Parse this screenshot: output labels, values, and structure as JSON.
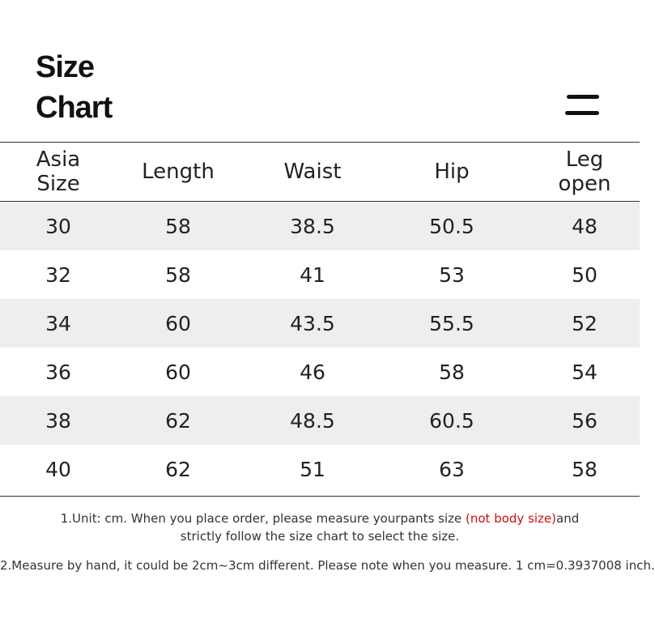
{
  "title": {
    "line1": "Size",
    "line2": "Chart"
  },
  "icons": {
    "menu": "menu-icon"
  },
  "table": {
    "headers": [
      {
        "line1": "Asia",
        "line2": "Size"
      },
      {
        "line1": "Length",
        "line2": ""
      },
      {
        "line1": "Waist",
        "line2": ""
      },
      {
        "line1": "Hip",
        "line2": ""
      },
      {
        "line1": "Leg",
        "line2": "open"
      }
    ],
    "rows": [
      [
        "30",
        "58",
        "38.5",
        "50.5",
        "48"
      ],
      [
        "32",
        "58",
        "41",
        "53",
        "50"
      ],
      [
        "34",
        "60",
        "43.5",
        "55.5",
        "52"
      ],
      [
        "36",
        "60",
        "46",
        "58",
        "54"
      ],
      [
        "38",
        "62",
        "48.5",
        "60.5",
        "56"
      ],
      [
        "40",
        "62",
        "51",
        "63",
        "58"
      ]
    ]
  },
  "notes": {
    "note1_part1": "1.Unit: cm. When you place order, please measure yourpants size ",
    "note1_highlight": "(not body size)",
    "note1_part2": "and",
    "note1_line2": "strictly follow the size chart to select the size.",
    "note2": "2.Measure by hand, it could be 2cm~3cm different. Please note when you measure. 1 cm=0.3937008 inch."
  },
  "colors": {
    "text": "#222222",
    "row_shade": "#eeeeee",
    "highlight": "#cc1111"
  }
}
